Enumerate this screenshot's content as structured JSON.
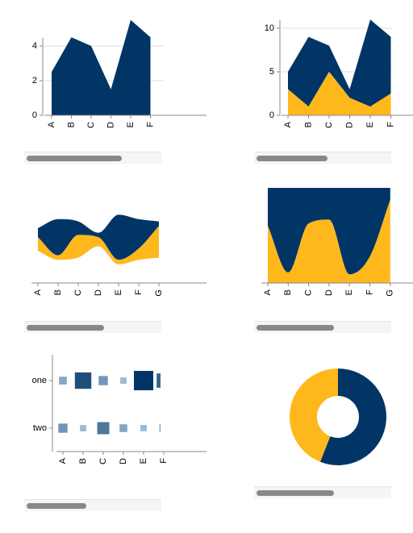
{
  "colors": {
    "primary": "#003566",
    "secondary": "#FFB81C",
    "axis": "#888888",
    "grid": "#dddddd",
    "heat_low": "#B5D3EA",
    "heat_high": "#003566"
  },
  "chart_data": [
    {
      "id": "area-single",
      "type": "area",
      "categories": [
        "A",
        "B",
        "C",
        "D",
        "E",
        "F"
      ],
      "series": [
        {
          "values": [
            2.5,
            4.5,
            4.0,
            1.5,
            5.5,
            4.5
          ]
        }
      ],
      "yticks": [
        0,
        2,
        4
      ],
      "ylim": [
        0,
        5.5
      ],
      "grid": true
    },
    {
      "id": "area-stacked",
      "type": "area",
      "stacked": true,
      "categories": [
        "A",
        "B",
        "C",
        "D",
        "E",
        "F"
      ],
      "series": [
        {
          "values": [
            3,
            1,
            5,
            2,
            1,
            2.5
          ]
        },
        {
          "values": [
            2,
            8,
            3,
            1,
            10,
            6.5
          ]
        }
      ],
      "yticks": [
        0,
        5,
        10
      ],
      "ylim": [
        0,
        11
      ],
      "grid": true
    },
    {
      "id": "streamgraph",
      "type": "area",
      "stacked": true,
      "offset": "center",
      "interpolate": "monotone",
      "categories": [
        "A",
        "B",
        "C",
        "D",
        "E",
        "F",
        "G"
      ],
      "series": [
        {
          "values": [
            3,
            1,
            5,
            2,
            1,
            2.5,
            7
          ]
        },
        {
          "values": [
            2,
            8,
            3,
            1,
            10,
            6.5,
            1
          ]
        }
      ],
      "grid": false
    },
    {
      "id": "normalized",
      "type": "area",
      "stacked": true,
      "offset": "normalize",
      "interpolate": "monotone",
      "categories": [
        "A",
        "B",
        "C",
        "D",
        "E",
        "F",
        "G"
      ],
      "series": [
        {
          "values": [
            3,
            1,
            5,
            2,
            1,
            2.5,
            7
          ]
        },
        {
          "values": [
            2,
            8,
            3,
            1,
            10,
            6.5,
            1
          ]
        }
      ],
      "grid": false
    },
    {
      "id": "heatmap",
      "type": "heatmap",
      "categories": [
        "A",
        "B",
        "C",
        "D",
        "E",
        "F"
      ],
      "rows": [
        "one",
        "two"
      ],
      "values": [
        [
          2,
          8,
          3,
          1,
          10,
          6.5
        ],
        [
          3,
          1,
          5,
          2,
          1,
          2.5
        ]
      ],
      "grid": false
    },
    {
      "id": "donut",
      "type": "pie",
      "donut": true,
      "values": [
        0.56,
        0.44
      ]
    }
  ]
}
